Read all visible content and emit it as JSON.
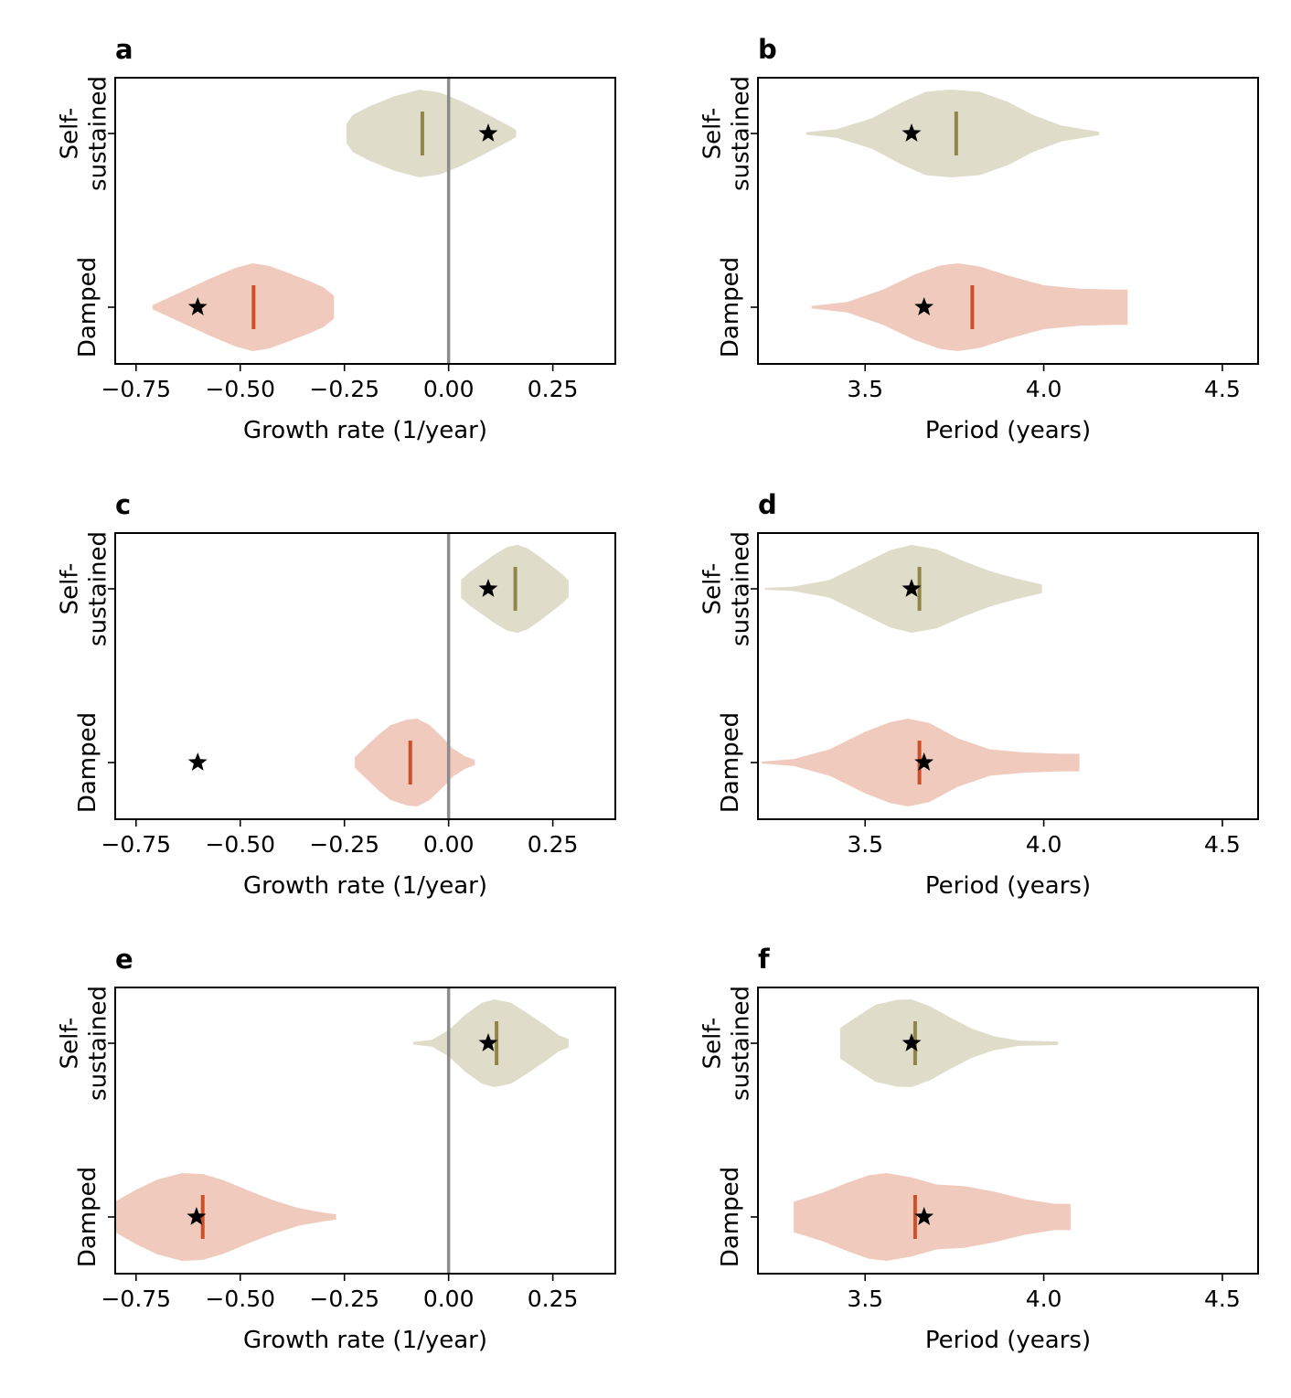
{
  "colors": {
    "self_fill": "#dfdcc9",
    "self_median": "#8f8648",
    "damped_fill": "#f0cbbd",
    "damped_median": "#cc5128",
    "zero_line": "#8c8c8c",
    "axis": "#000000"
  },
  "chart_data": [
    {
      "panel": "a",
      "type": "violin",
      "xlabel": "Growth rate (1/year)",
      "categories": [
        "Self-\nsustained",
        "Damped"
      ],
      "xlim": [
        -0.8,
        0.4
      ],
      "xticks": [
        -0.75,
        -0.5,
        -0.25,
        0.0,
        0.25
      ],
      "xtick_labels": [
        "−0.75",
        "−0.50",
        "−0.25",
        "0.00",
        "0.25"
      ],
      "zero_line": 0.0,
      "series": [
        {
          "name": "Self-sustained",
          "median": -0.063,
          "star": 0.095,
          "profile": [
            [
              -0.245,
              0.22
            ],
            [
              -0.23,
              0.42
            ],
            [
              -0.19,
              0.62
            ],
            [
              -0.13,
              0.85
            ],
            [
              -0.07,
              1.0
            ],
            [
              -0.02,
              0.93
            ],
            [
              0.03,
              0.74
            ],
            [
              0.08,
              0.5
            ],
            [
              0.12,
              0.3
            ],
            [
              0.15,
              0.15
            ],
            [
              0.162,
              0.08
            ]
          ]
        },
        {
          "name": "Damped",
          "median": -0.468,
          "star": -0.602,
          "profile": [
            [
              -0.71,
              0.05
            ],
            [
              -0.68,
              0.18
            ],
            [
              -0.63,
              0.4
            ],
            [
              -0.57,
              0.66
            ],
            [
              -0.51,
              0.9
            ],
            [
              -0.47,
              1.0
            ],
            [
              -0.43,
              0.94
            ],
            [
              -0.39,
              0.8
            ],
            [
              -0.34,
              0.62
            ],
            [
              -0.3,
              0.45
            ],
            [
              -0.275,
              0.26
            ]
          ]
        }
      ]
    },
    {
      "panel": "b",
      "type": "violin",
      "xlabel": "Period (years)",
      "categories": [
        "Self-\nsustained",
        "Damped"
      ],
      "xlim": [
        3.2,
        4.6
      ],
      "xticks": [
        3.5,
        4.0,
        4.5
      ],
      "xtick_labels": [
        "3.5",
        "4.0",
        "4.5"
      ],
      "series": [
        {
          "name": "Self-sustained",
          "median": 3.755,
          "star": 3.63,
          "profile": [
            [
              3.335,
              0.03
            ],
            [
              3.42,
              0.1
            ],
            [
              3.52,
              0.35
            ],
            [
              3.6,
              0.7
            ],
            [
              3.67,
              0.95
            ],
            [
              3.74,
              1.0
            ],
            [
              3.82,
              0.95
            ],
            [
              3.9,
              0.72
            ],
            [
              3.97,
              0.42
            ],
            [
              4.05,
              0.18
            ],
            [
              4.155,
              0.04
            ]
          ]
        },
        {
          "name": "Damped",
          "median": 3.8,
          "star": 3.665,
          "profile": [
            [
              3.35,
              0.03
            ],
            [
              3.45,
              0.12
            ],
            [
              3.55,
              0.4
            ],
            [
              3.64,
              0.75
            ],
            [
              3.71,
              0.95
            ],
            [
              3.76,
              1.0
            ],
            [
              3.82,
              0.93
            ],
            [
              3.9,
              0.72
            ],
            [
              4.0,
              0.5
            ],
            [
              4.1,
              0.42
            ],
            [
              4.2,
              0.4
            ],
            [
              4.235,
              0.4
            ]
          ]
        }
      ]
    },
    {
      "panel": "c",
      "type": "violin",
      "xlabel": "Growth rate (1/year)",
      "categories": [
        "Self-\nsustained",
        "Damped"
      ],
      "xlim": [
        -0.8,
        0.4
      ],
      "xticks": [
        -0.75,
        -0.5,
        -0.25,
        0.0,
        0.25
      ],
      "xtick_labels": [
        "−0.75",
        "−0.50",
        "−0.25",
        "0.00",
        "0.25"
      ],
      "zero_line": 0.0,
      "series": [
        {
          "name": "Self-sustained",
          "median": 0.16,
          "star": 0.095,
          "profile": [
            [
              0.03,
              0.2
            ],
            [
              0.05,
              0.38
            ],
            [
              0.08,
              0.58
            ],
            [
              0.11,
              0.78
            ],
            [
              0.14,
              0.95
            ],
            [
              0.165,
              1.0
            ],
            [
              0.19,
              0.92
            ],
            [
              0.22,
              0.72
            ],
            [
              0.25,
              0.5
            ],
            [
              0.275,
              0.32
            ],
            [
              0.288,
              0.18
            ]
          ]
        },
        {
          "name": "Damped",
          "median": -0.092,
          "star": -0.602,
          "profile": [
            [
              -0.225,
              0.12
            ],
            [
              -0.2,
              0.35
            ],
            [
              -0.17,
              0.62
            ],
            [
              -0.14,
              0.85
            ],
            [
              -0.1,
              0.98
            ],
            [
              -0.075,
              1.0
            ],
            [
              -0.045,
              0.85
            ],
            [
              -0.015,
              0.58
            ],
            [
              0.01,
              0.32
            ],
            [
              0.04,
              0.14
            ],
            [
              0.063,
              0.06
            ]
          ]
        }
      ]
    },
    {
      "panel": "d",
      "type": "violin",
      "xlabel": "Period (years)",
      "categories": [
        "Self-\nsustained",
        "Damped"
      ],
      "xlim": [
        3.2,
        4.6
      ],
      "xticks": [
        3.5,
        4.0,
        4.5
      ],
      "xtick_labels": [
        "3.5",
        "4.0",
        "4.5"
      ],
      "series": [
        {
          "name": "Self-sustained",
          "median": 3.652,
          "star": 3.63,
          "profile": [
            [
              3.22,
              0.02
            ],
            [
              3.3,
              0.05
            ],
            [
              3.4,
              0.2
            ],
            [
              3.5,
              0.6
            ],
            [
              3.57,
              0.88
            ],
            [
              3.63,
              1.0
            ],
            [
              3.7,
              0.9
            ],
            [
              3.77,
              0.65
            ],
            [
              3.85,
              0.4
            ],
            [
              3.93,
              0.22
            ],
            [
              3.995,
              0.1
            ]
          ]
        },
        {
          "name": "Damped",
          "median": 3.652,
          "star": 3.665,
          "profile": [
            [
              3.21,
              0.02
            ],
            [
              3.3,
              0.08
            ],
            [
              3.4,
              0.3
            ],
            [
              3.5,
              0.7
            ],
            [
              3.57,
              0.92
            ],
            [
              3.62,
              1.0
            ],
            [
              3.68,
              0.9
            ],
            [
              3.76,
              0.55
            ],
            [
              3.85,
              0.3
            ],
            [
              3.95,
              0.23
            ],
            [
              4.05,
              0.2
            ],
            [
              4.1,
              0.2
            ]
          ]
        }
      ]
    },
    {
      "panel": "e",
      "type": "violin",
      "xlabel": "Growth rate (1/year)",
      "categories": [
        "Self-\nsustained",
        "Damped"
      ],
      "xlim": [
        -0.8,
        0.4
      ],
      "xticks": [
        -0.75,
        -0.5,
        -0.25,
        0.0,
        0.25
      ],
      "xtick_labels": [
        "−0.75",
        "−0.50",
        "−0.25",
        "0.00",
        "0.25"
      ],
      "zero_line": 0.0,
      "series": [
        {
          "name": "Self-sustained",
          "median": 0.115,
          "star": 0.095,
          "profile": [
            [
              -0.085,
              0.03
            ],
            [
              -0.04,
              0.08
            ],
            [
              0.0,
              0.3
            ],
            [
              0.04,
              0.65
            ],
            [
              0.08,
              0.92
            ],
            [
              0.11,
              1.0
            ],
            [
              0.15,
              0.92
            ],
            [
              0.19,
              0.68
            ],
            [
              0.23,
              0.42
            ],
            [
              0.265,
              0.18
            ],
            [
              0.288,
              0.1
            ]
          ]
        },
        {
          "name": "Damped",
          "median": -0.59,
          "star": -0.605,
          "profile": [
            [
              -0.8,
              0.35
            ],
            [
              -0.75,
              0.62
            ],
            [
              -0.7,
              0.85
            ],
            [
              -0.64,
              1.0
            ],
            [
              -0.59,
              0.98
            ],
            [
              -0.54,
              0.84
            ],
            [
              -0.48,
              0.6
            ],
            [
              -0.42,
              0.38
            ],
            [
              -0.36,
              0.2
            ],
            [
              -0.3,
              0.1
            ],
            [
              -0.27,
              0.06
            ]
          ]
        }
      ]
    },
    {
      "panel": "f",
      "type": "violin",
      "xlabel": "Period (years)",
      "categories": [
        "Self-\nsustained",
        "Damped"
      ],
      "xlim": [
        3.2,
        4.6
      ],
      "xticks": [
        3.5,
        4.0,
        4.5
      ],
      "xtick_labels": [
        "3.5",
        "4.0",
        "4.5"
      ],
      "series": [
        {
          "name": "Self-sustained",
          "median": 3.64,
          "star": 3.63,
          "profile": [
            [
              3.43,
              0.35
            ],
            [
              3.48,
              0.62
            ],
            [
              3.53,
              0.88
            ],
            [
              3.59,
              0.99
            ],
            [
              3.63,
              1.0
            ],
            [
              3.68,
              0.85
            ],
            [
              3.74,
              0.58
            ],
            [
              3.8,
              0.33
            ],
            [
              3.86,
              0.16
            ],
            [
              3.93,
              0.06
            ],
            [
              4.04,
              0.04
            ]
          ]
        },
        {
          "name": "Damped",
          "median": 3.64,
          "star": 3.665,
          "profile": [
            [
              3.3,
              0.35
            ],
            [
              3.38,
              0.55
            ],
            [
              3.45,
              0.78
            ],
            [
              3.51,
              0.95
            ],
            [
              3.56,
              1.0
            ],
            [
              3.63,
              0.9
            ],
            [
              3.7,
              0.74
            ],
            [
              3.78,
              0.7
            ],
            [
              3.86,
              0.58
            ],
            [
              3.95,
              0.4
            ],
            [
              4.03,
              0.3
            ],
            [
              4.075,
              0.3
            ]
          ]
        }
      ]
    }
  ]
}
